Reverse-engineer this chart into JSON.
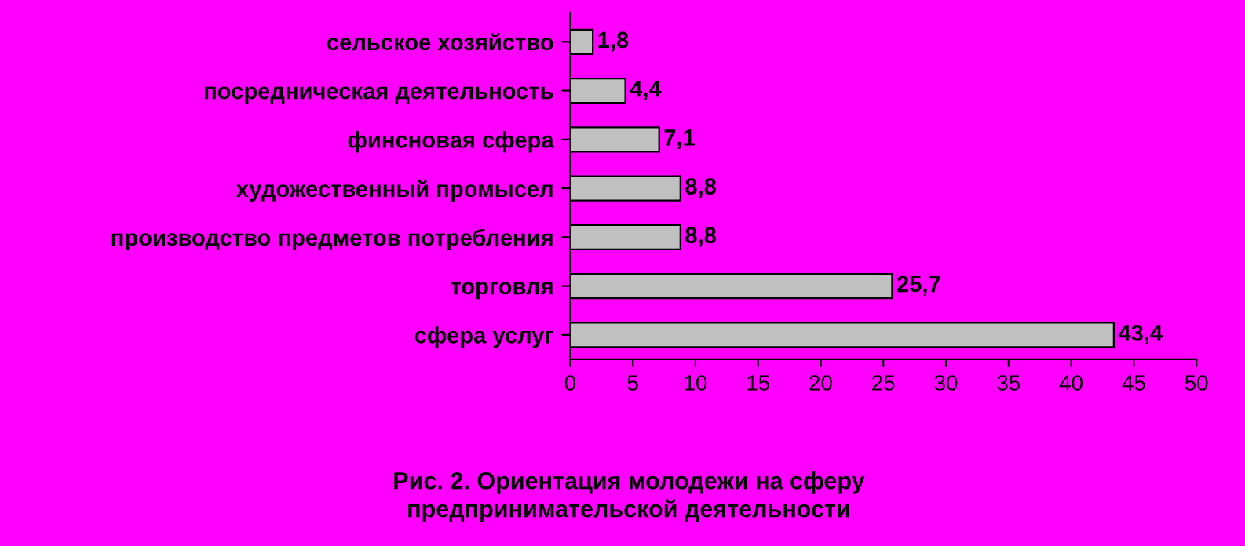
{
  "chart_data": {
    "type": "bar",
    "orientation": "horizontal",
    "title": "Рис. 2. Ориентация молодежи на сферу\nпредпринимательской деятельности",
    "categories": [
      "сельское хозяйство",
      "посредническая деятельность",
      "финсновая сфера",
      "художественный промысел",
      "производство предметов потребления",
      "торговля",
      "сфера услуг"
    ],
    "values": [
      1.8,
      4.4,
      7.1,
      8.8,
      8.8,
      25.7,
      43.4
    ],
    "value_labels": [
      "1,8",
      "4,4",
      "7,1",
      "8,8",
      "8,8",
      "25,7",
      "43,4"
    ],
    "color": "#c0c0c0",
    "xlim": [
      0,
      50
    ],
    "xticks": [
      0,
      5,
      10,
      15,
      20,
      25,
      30,
      35,
      40,
      45,
      50
    ],
    "grid": false
  }
}
